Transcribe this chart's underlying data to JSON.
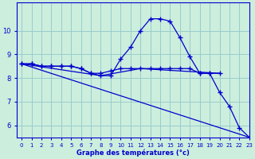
{
  "title": "Graphe des températures (°c)",
  "background_color": "#cceedd",
  "grid_color": "#99cccc",
  "line_color": "#0000cc",
  "xlim": [
    -0.5,
    23
  ],
  "ylim": [
    5.5,
    11.2
  ],
  "yticks": [
    6,
    7,
    8,
    9,
    10
  ],
  "xticks": [
    0,
    1,
    2,
    3,
    4,
    5,
    6,
    7,
    8,
    9,
    10,
    11,
    12,
    13,
    14,
    15,
    16,
    17,
    18,
    19,
    20,
    21,
    22,
    23
  ],
  "series1_x": [
    0,
    1,
    2,
    3,
    4,
    5,
    6,
    7,
    8,
    9,
    10,
    11,
    12,
    13,
    14,
    15,
    16,
    17,
    18,
    19,
    20,
    21,
    22,
    23
  ],
  "series1_y": [
    8.6,
    8.6,
    8.5,
    8.5,
    8.5,
    8.5,
    8.4,
    8.2,
    8.1,
    8.1,
    8.8,
    9.3,
    10.0,
    10.5,
    10.5,
    10.4,
    9.7,
    8.9,
    8.2,
    8.2,
    7.4,
    6.8,
    5.9,
    5.5
  ],
  "series2_x": [
    0,
    1,
    2,
    3,
    4,
    5,
    6,
    7,
    8,
    9,
    10,
    11,
    12,
    13,
    14,
    15,
    16,
    17,
    18,
    19,
    20
  ],
  "series2_y": [
    8.6,
    8.6,
    8.5,
    8.5,
    8.5,
    8.5,
    8.4,
    8.2,
    8.2,
    8.3,
    8.4,
    8.4,
    8.4,
    8.4,
    8.4,
    8.4,
    8.4,
    8.4,
    8.2,
    8.2,
    8.2
  ],
  "series3_x": [
    0,
    23
  ],
  "series3_y": [
    8.6,
    5.5
  ],
  "series4_x": [
    0,
    8,
    12,
    20
  ],
  "series4_y": [
    8.6,
    8.1,
    8.4,
    8.2
  ]
}
